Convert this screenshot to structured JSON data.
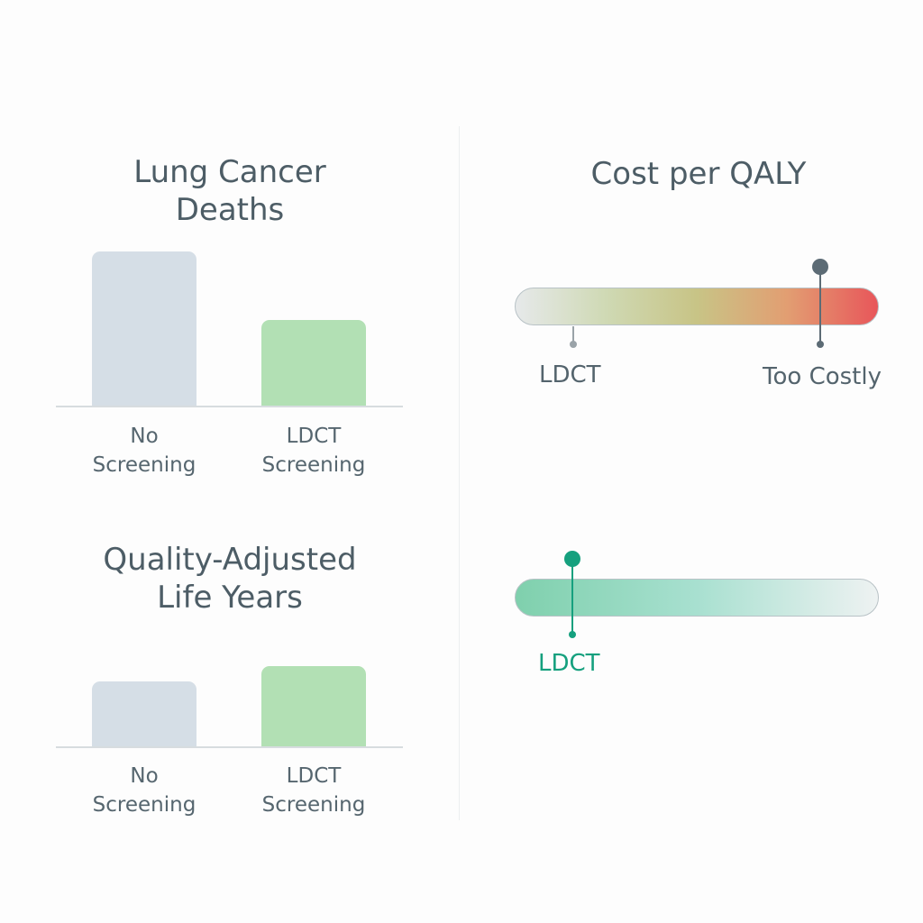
{
  "chart_data": [
    {
      "type": "bar",
      "title": "Lung Cancer\nDeaths",
      "categories": [
        "No\nScreening",
        "LDCT\nScreening"
      ],
      "values": [
        100,
        56
      ],
      "ylim": [
        0,
        100
      ],
      "colors": [
        "#d5dee6",
        "#b2e0b4"
      ],
      "grid": false
    },
    {
      "type": "bar",
      "title": "Quality-Adjusted\nLife Years",
      "categories": [
        "No\nScreening",
        "LDCT\nScreening"
      ],
      "values": [
        100,
        124
      ],
      "ylim": [
        0,
        124
      ],
      "colors": [
        "#d5dee6",
        "#b2e0b4"
      ],
      "grid": false
    },
    {
      "type": "scale",
      "title": "Cost per QALY",
      "gradient": [
        "#e6e9ea",
        "#cfd9b4",
        "#c8c486",
        "#e29e72",
        "#e8565a"
      ],
      "markers": [
        {
          "label": "LDCT",
          "position": 0.16,
          "color": "#9aa3a8",
          "emphasis": false
        },
        {
          "label": "Too Costly",
          "position": 0.84,
          "color": "#5c6b75",
          "emphasis": true
        }
      ]
    },
    {
      "type": "scale",
      "title": "",
      "gradient": [
        "#7fd0ad",
        "#a8e0d0",
        "#eef2f2"
      ],
      "markers": [
        {
          "label": "LDCT",
          "position": 0.158,
          "color": "#15a07e",
          "emphasis": true
        }
      ]
    }
  ]
}
